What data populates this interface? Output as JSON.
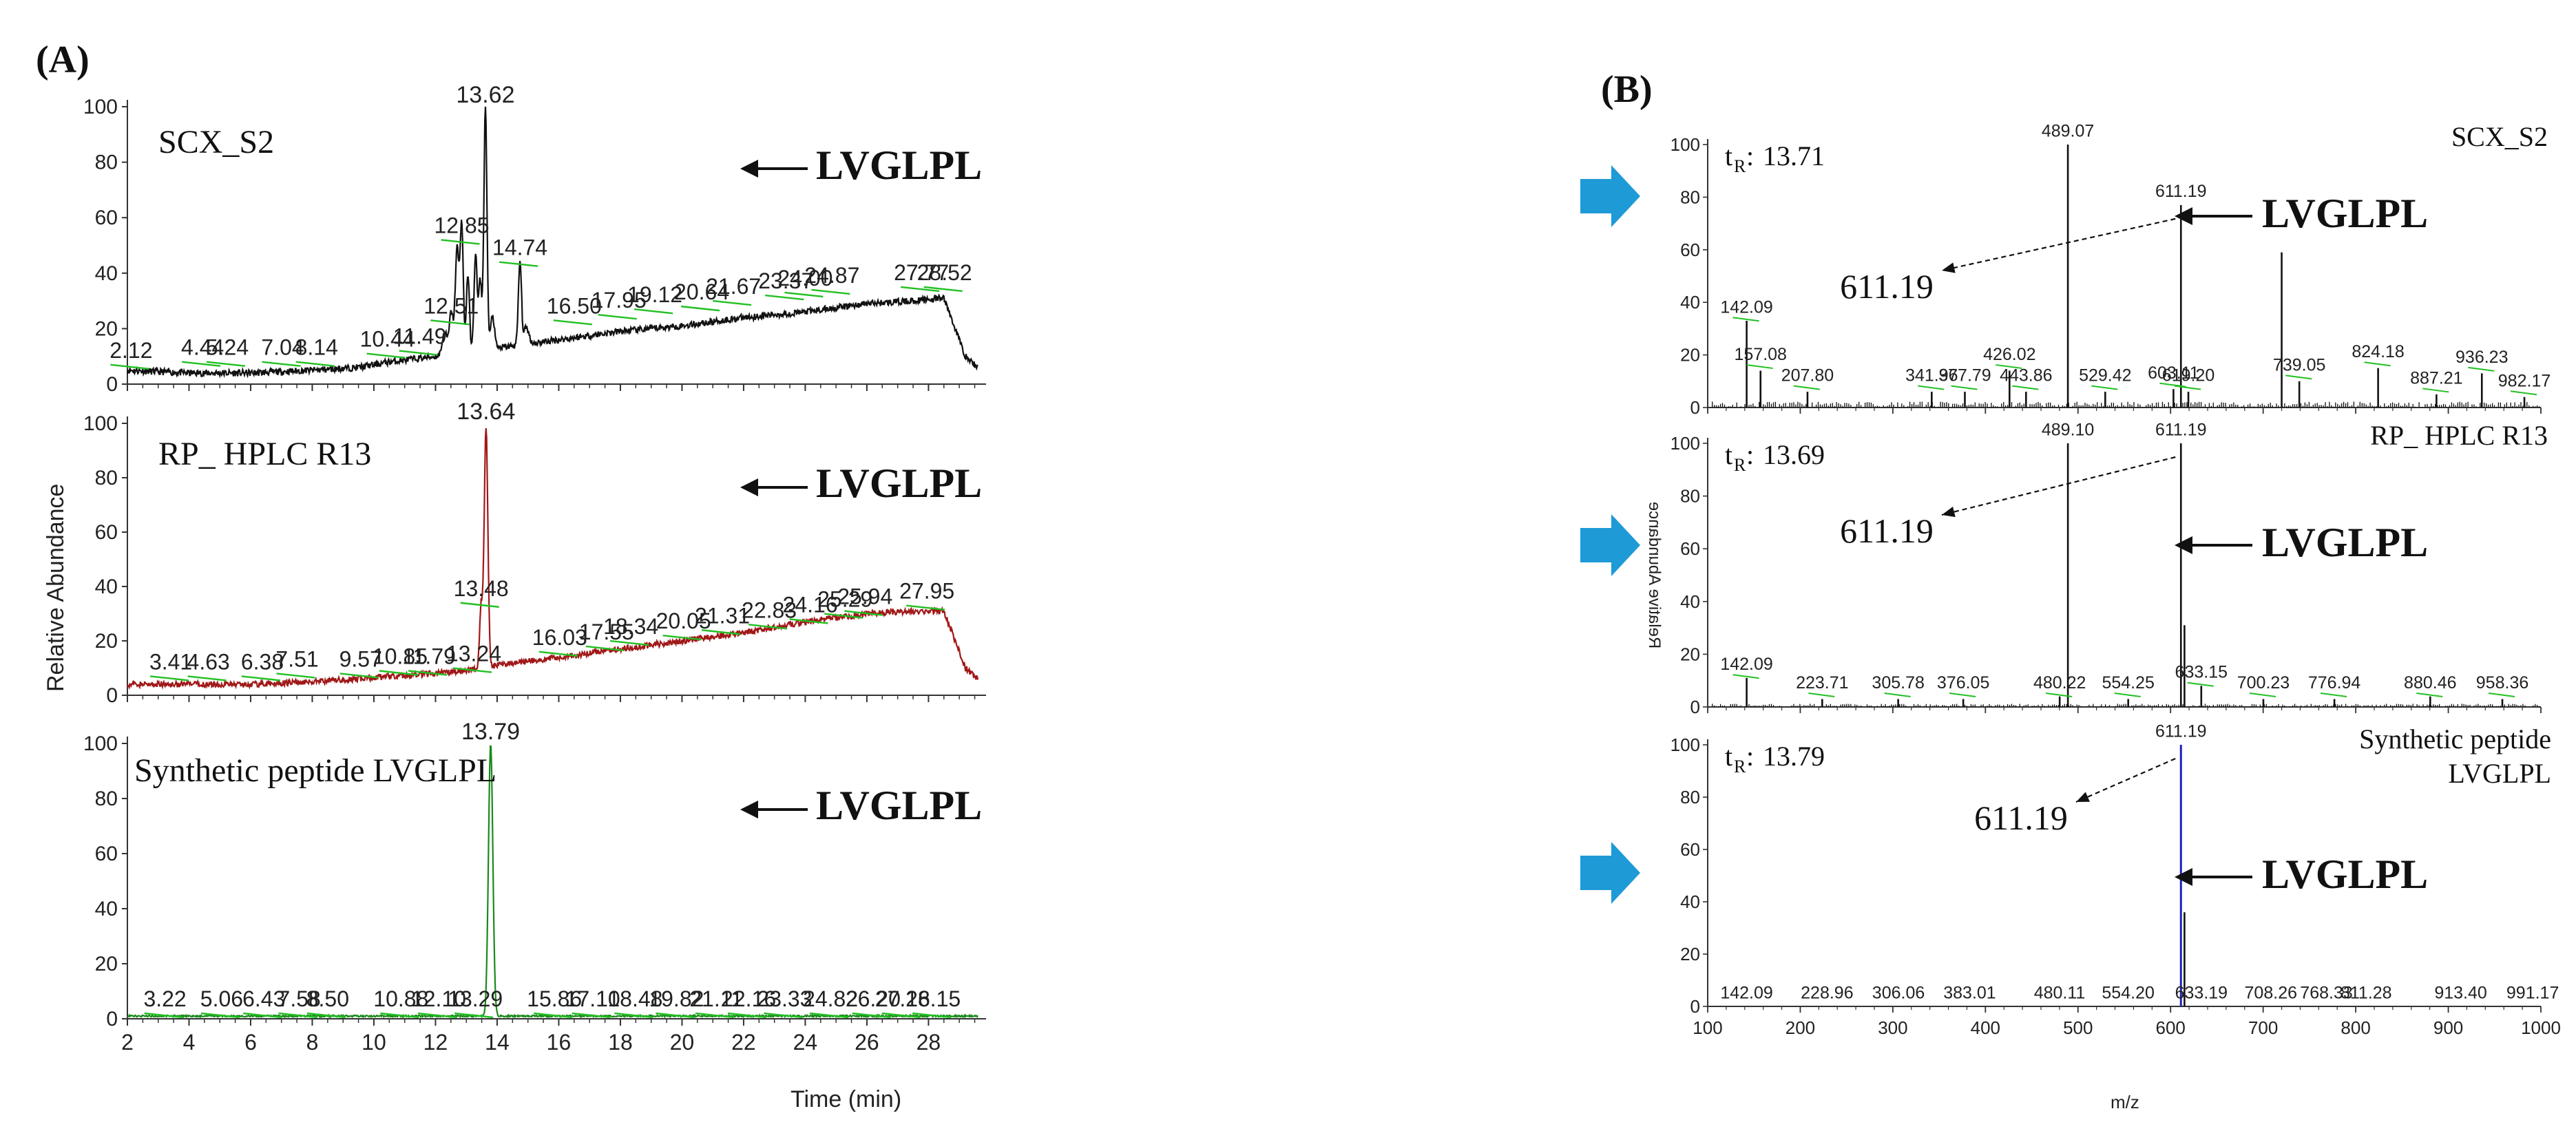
{
  "panel_labels": [
    "(A)",
    "(B)"
  ],
  "peptide": "LVGLPL",
  "mass_label": "611.19",
  "colors": {
    "scx": "#111111",
    "rp": "#a01818",
    "syn": "#1a8a1a",
    "ms_blue": "#2020c0",
    "arrow": "#1e9ad6",
    "marker": "#22c022"
  },
  "chart_data": [
    {
      "type": "line",
      "title": "SCX_S2",
      "xlabel": "Time (min)",
      "ylabel": "Relative Abundance",
      "xlim": [
        2,
        29.6
      ],
      "ylim": [
        0,
        100
      ],
      "xticks": [
        2,
        4,
        6,
        8,
        10,
        12,
        14,
        16,
        18,
        20,
        22,
        24,
        26,
        28
      ],
      "yticks": [
        0,
        20,
        40,
        60,
        80,
        100
      ],
      "baseline": [
        [
          2,
          5
        ],
        [
          4,
          4
        ],
        [
          6,
          4
        ],
        [
          8,
          5
        ],
        [
          9.5,
          6
        ],
        [
          10.5,
          8
        ],
        [
          12,
          10
        ],
        [
          14,
          13
        ],
        [
          16,
          16
        ],
        [
          18,
          19
        ],
        [
          20,
          21
        ],
        [
          22,
          24
        ],
        [
          24,
          26
        ],
        [
          26,
          29
        ],
        [
          27.5,
          30
        ],
        [
          28.5,
          31
        ],
        [
          29.2,
          10
        ],
        [
          29.6,
          6
        ]
      ],
      "peaks": [
        [
          12.3,
          8,
          0.08
        ],
        [
          12.51,
          15,
          0.06
        ],
        [
          12.7,
          38,
          0.06
        ],
        [
          12.85,
          47,
          0.05
        ],
        [
          13.05,
          28,
          0.05
        ],
        [
          13.3,
          35,
          0.05
        ],
        [
          13.45,
          25,
          0.05
        ],
        [
          13.62,
          88,
          0.05
        ],
        [
          13.85,
          12,
          0.06
        ],
        [
          14.74,
          30,
          0.05
        ],
        [
          14.95,
          6,
          0.08
        ]
      ],
      "noise": 1.2,
      "peak_labels": [
        "2.12",
        "4.44",
        "5.24",
        "7.04",
        "8.14",
        "10.44",
        "11.49",
        "12.51",
        "12.85",
        "13.62",
        "14.74",
        "16.50",
        "17.95",
        "19.12",
        "20.64",
        "21.67",
        "23.37",
        "24.00",
        "24.87",
        "27.77",
        "28.52"
      ],
      "peak_label_x": [
        2.12,
        4.44,
        5.24,
        7.04,
        8.14,
        10.44,
        11.49,
        12.51,
        12.85,
        13.62,
        14.74,
        16.5,
        17.95,
        19.12,
        20.64,
        21.67,
        23.37,
        24.0,
        24.87,
        27.77,
        28.52
      ],
      "peak_label_y": [
        8,
        9,
        9,
        9,
        9,
        12,
        13,
        24,
        53,
        100,
        45,
        24,
        26,
        28,
        29,
        31,
        33,
        34,
        35,
        36,
        36
      ],
      "target_rt": 13.62
    },
    {
      "type": "line",
      "title": "RP_ HPLC R13",
      "xlim": [
        2,
        29.6
      ],
      "ylim": [
        0,
        100
      ],
      "xticks": [
        2,
        4,
        6,
        8,
        10,
        12,
        14,
        16,
        18,
        20,
        22,
        24,
        26,
        28
      ],
      "yticks": [
        0,
        20,
        40,
        60,
        80,
        100
      ],
      "baseline": [
        [
          2,
          4
        ],
        [
          4,
          4
        ],
        [
          6,
          4
        ],
        [
          8,
          5
        ],
        [
          9.5,
          6
        ],
        [
          10.5,
          7
        ],
        [
          12,
          8
        ],
        [
          13,
          9
        ],
        [
          14,
          11
        ],
        [
          16,
          14
        ],
        [
          18,
          17
        ],
        [
          20,
          20
        ],
        [
          22,
          23
        ],
        [
          24,
          27
        ],
        [
          26,
          30
        ],
        [
          27.5,
          31
        ],
        [
          28.5,
          31
        ],
        [
          29.2,
          10
        ],
        [
          29.6,
          6
        ]
      ],
      "peaks": [
        [
          13.48,
          22,
          0.05
        ],
        [
          13.64,
          88,
          0.06
        ]
      ],
      "noise": 1.1,
      "peak_labels": [
        "3.41",
        "4.63",
        "6.38",
        "7.51",
        "9.57",
        "10.85",
        "11.79",
        "13.24",
        "13.48",
        "13.64",
        "16.03",
        "17.55",
        "18.34",
        "20.05",
        "21.31",
        "22.83",
        "24.16",
        "25.29",
        "25.94",
        "27.95"
      ],
      "peak_label_x": [
        3.41,
        4.63,
        6.38,
        7.51,
        9.57,
        10.85,
        11.79,
        13.24,
        13.48,
        13.64,
        16.03,
        17.55,
        18.34,
        20.05,
        21.31,
        22.83,
        24.16,
        25.29,
        25.94,
        27.95
      ],
      "peak_label_y": [
        8,
        8,
        8,
        9,
        9,
        10,
        10,
        11,
        35,
        100,
        17,
        19,
        21,
        23,
        25,
        27,
        29,
        31,
        32,
        34
      ],
      "target_rt": 13.64
    },
    {
      "type": "line",
      "title": "Synthetic peptide LVGLPL",
      "xlim": [
        2,
        29.6
      ],
      "ylim": [
        0,
        100
      ],
      "xticks": [
        2,
        4,
        6,
        8,
        10,
        12,
        14,
        16,
        18,
        20,
        22,
        24,
        26,
        28
      ],
      "yticks": [
        0,
        20,
        40,
        60,
        80,
        100
      ],
      "baseline": [
        [
          2,
          1
        ],
        [
          29.6,
          1
        ]
      ],
      "peaks": [
        [
          13.79,
          99,
          0.07
        ]
      ],
      "noise": 0.3,
      "peak_labels": [
        "3.22",
        "5.06",
        "6.43",
        "7.58",
        "8.50",
        "10.88",
        "12.10",
        "13.29",
        "13.79",
        "15.86",
        "17.10",
        "18.48",
        "19.82",
        "21.11",
        "22.16",
        "23.33",
        "24.82",
        "26.20",
        "27.16",
        "28.15"
      ],
      "peak_label_x": [
        3.22,
        5.06,
        6.43,
        7.58,
        8.5,
        10.88,
        12.1,
        13.29,
        13.79,
        15.86,
        17.1,
        18.48,
        19.82,
        21.11,
        22.16,
        23.33,
        24.82,
        26.2,
        27.16,
        28.15
      ],
      "peak_label_y": [
        3,
        3,
        3,
        3,
        3,
        3,
        3,
        3,
        100,
        3,
        3,
        3,
        3,
        3,
        3,
        3,
        3,
        3,
        3,
        3
      ],
      "target_rt": 13.79
    },
    {
      "type": "bar",
      "title": "SCX_S2",
      "retention": "13.71",
      "xlim": [
        100,
        1000
      ],
      "ylim": [
        0,
        100
      ],
      "xticks": [
        100,
        200,
        300,
        400,
        500,
        600,
        700,
        800,
        900,
        1000
      ],
      "yticks": [
        0,
        20,
        40,
        60,
        80,
        100
      ],
      "peaks_mz": [
        142.09,
        157.08,
        207.8,
        341.96,
        377.79,
        426.02,
        443.86,
        489.07,
        529.42,
        603.11,
        611.19,
        619.2,
        720.0,
        739.05,
        824.18,
        887.21,
        936.23,
        982.17
      ],
      "peaks_int": [
        33,
        14,
        6,
        6,
        6,
        14,
        6,
        100,
        6,
        7,
        77,
        6,
        59,
        10,
        15,
        5,
        13,
        4
      ],
      "peak_labels": [
        "142.09",
        "157.08",
        "207.80",
        "341.96",
        "377.79",
        "426.02",
        "443.86",
        "489.07",
        "529.42",
        "603.11",
        "611.19",
        "619.20",
        "739.05",
        "824.18",
        "887.21",
        "936.23",
        "982.17"
      ],
      "peak_label_mz": [
        142.09,
        157.08,
        207.8,
        341.96,
        377.79,
        426.02,
        443.86,
        489.07,
        529.42,
        603.11,
        611.19,
        619.2,
        739.05,
        824.18,
        887.21,
        936.23,
        982.17
      ],
      "peak_label_y": [
        35,
        17,
        9,
        9,
        9,
        17,
        9,
        102,
        9,
        10,
        79,
        9,
        13,
        18,
        8,
        16,
        7
      ],
      "precursor_mz": 611.19
    },
    {
      "type": "bar",
      "title": "RP_ HPLC R13",
      "retention": "13.69",
      "ylabel_mirrored": "Relative Abundance",
      "xlim": [
        100,
        1000
      ],
      "ylim": [
        0,
        100
      ],
      "xticks": [
        100,
        200,
        300,
        400,
        500,
        600,
        700,
        800,
        900,
        1000
      ],
      "yticks": [
        0,
        20,
        40,
        60,
        80,
        100
      ],
      "peaks_mz": [
        142.09,
        223.71,
        305.78,
        376.05,
        480.22,
        489.1,
        554.25,
        611.19,
        615.0,
        633.15,
        700.23,
        776.94,
        880.46,
        958.36
      ],
      "peaks_int": [
        11,
        3,
        3,
        3,
        4,
        100,
        3,
        100,
        31,
        8,
        3,
        3,
        4,
        3
      ],
      "peak_labels": [
        "142.09",
        "223.71",
        "305.78",
        "376.05",
        "480.22",
        "489.10",
        "554.25",
        "611.19",
        "633.15",
        "700.23",
        "776.94",
        "880.46",
        "958.36"
      ],
      "peak_label_mz": [
        142.09,
        223.71,
        305.78,
        376.05,
        480.22,
        489.1,
        554.25,
        611.19,
        633.15,
        700.23,
        776.94,
        880.46,
        958.36
      ],
      "peak_label_y": [
        13,
        6,
        6,
        6,
        6,
        102,
        6,
        102,
        10,
        6,
        6,
        6,
        6
      ],
      "precursor_mz": 611.19
    },
    {
      "type": "bar",
      "title_line1": "Synthetic peptide",
      "title_line2": "LVGLPL",
      "retention": "13.79",
      "xlabel": "m/z",
      "xlim": [
        100,
        1000
      ],
      "ylim": [
        0,
        100
      ],
      "xticks": [
        100,
        200,
        300,
        400,
        500,
        600,
        700,
        800,
        900,
        1000
      ],
      "yticks": [
        0,
        20,
        40,
        60,
        80,
        100
      ],
      "peaks_mz": [
        611.19,
        615.0
      ],
      "peaks_int": [
        100,
        36
      ],
      "peak_labels": [
        "142.09",
        "228.96",
        "306.06",
        "383.01",
        "480.11",
        "554.20",
        "611.19",
        "633.19",
        "708.26",
        "768.33",
        "811.28",
        "913.40",
        "991.17"
      ],
      "peak_label_mz": [
        142.09,
        228.96,
        306.06,
        383.01,
        480.11,
        554.2,
        611.19,
        633.19,
        708.26,
        768.33,
        811.28,
        913.4,
        991.17
      ],
      "peak_label_y": [
        2,
        2,
        2,
        2,
        2,
        2,
        102,
        2,
        2,
        2,
        2,
        2,
        2
      ],
      "precursor_mz": 611.19
    }
  ]
}
